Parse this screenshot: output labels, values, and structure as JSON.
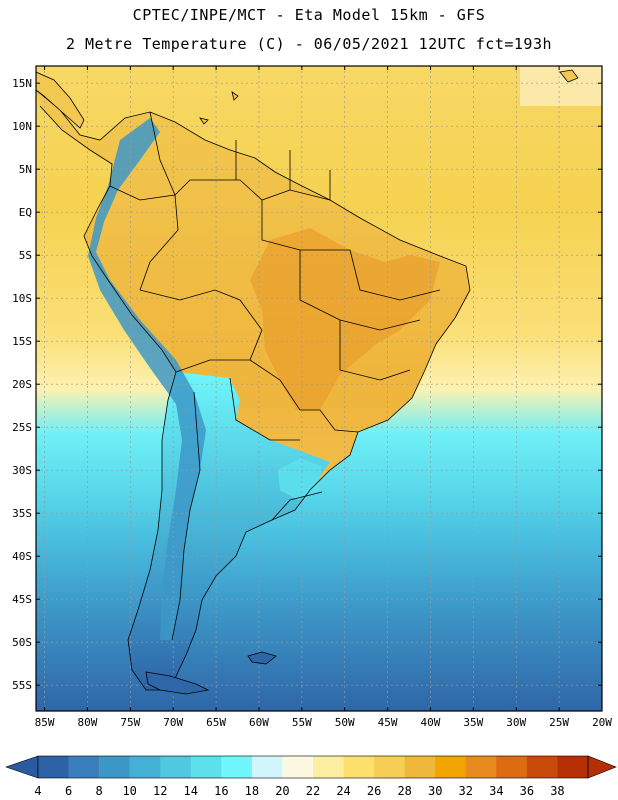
{
  "header": {
    "line1": "CPTEC/INPE/MCT -  Eta Model 15km - GFS",
    "line2": "2 Metre Temperature (C) - 06/05/2021 12UTC fct=193h"
  },
  "axes": {
    "lat_labels": [
      "15N",
      "10N",
      "5N",
      "EQ",
      "5S",
      "10S",
      "15S",
      "20S",
      "25S",
      "30S",
      "35S",
      "40S",
      "45S",
      "50S",
      "55S"
    ],
    "lat_values": [
      15,
      10,
      5,
      0,
      -5,
      -10,
      -15,
      -20,
      -25,
      -30,
      -35,
      -40,
      -45,
      -50,
      -55
    ],
    "lon_labels": [
      "85W",
      "80W",
      "75W",
      "70W",
      "65W",
      "60W",
      "55W",
      "50W",
      "45W",
      "40W",
      "35W",
      "30W",
      "25W",
      "20W"
    ],
    "lon_values": [
      -85,
      -80,
      -75,
      -70,
      -65,
      -60,
      -55,
      -50,
      -45,
      -40,
      -35,
      -30,
      -25,
      -20
    ],
    "lon_range": [
      -86,
      -20
    ],
    "lat_range": [
      -58,
      17
    ]
  },
  "colorbar": {
    "labels": [
      "4",
      "6",
      "8",
      "10",
      "12",
      "14",
      "16",
      "18",
      "20",
      "22",
      "24",
      "26",
      "28",
      "30",
      "32",
      "34",
      "36",
      "38"
    ],
    "colors": [
      "#2e62a6",
      "#3b7ebe",
      "#3d98c8",
      "#44b0d6",
      "#50c8e0",
      "#5ce0ec",
      "#6ff7fb",
      "#d2f6fc",
      "#fdf8e2",
      "#fcf0a0",
      "#fbe06c",
      "#f6cd55",
      "#efb73c",
      "#f2a400",
      "#e88a20",
      "#dd6b12",
      "#c84a08",
      "#b43004"
    ],
    "left_color": "#2a5aa0",
    "right_color": "#b43004"
  },
  "colors": {
    "ocean_tropical": "#f6d558",
    "ocean_south": "#44b0d6",
    "land": "#efbd49",
    "hot": "#e9a02e"
  }
}
